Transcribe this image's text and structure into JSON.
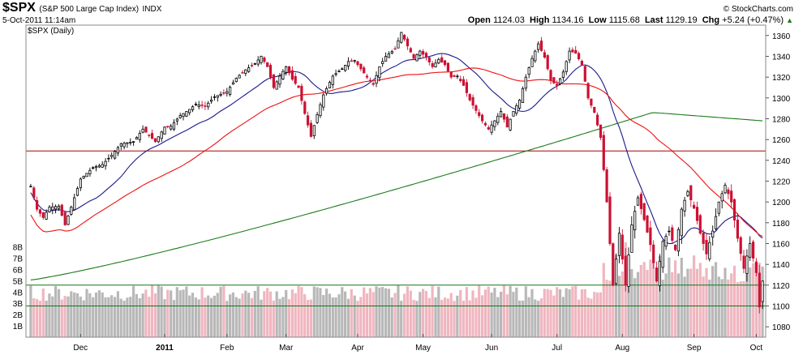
{
  "header": {
    "symbol": "$SPX",
    "name": "(S&P 500 Large Cap Index)",
    "exchange": "INDX",
    "datetime": "5-Oct-2011 11:14am",
    "brand": "© StockCharts.com",
    "open_label": "Open",
    "open": "1124.03",
    "high_label": "High",
    "high": "1134.16",
    "low_label": "Low",
    "low": "1115.68",
    "last_label": "Last",
    "last": "1129.19",
    "chg_label": "Chg",
    "chg": "+5.24 (+0.47%)",
    "chg_arrow": "▲",
    "plot_label": "$SPX (Daily)"
  },
  "colors": {
    "up": "#000000",
    "down": "#cc1133",
    "ma_short": "#1a1a8c",
    "ma_mid": "#ee1111",
    "ma_long": "#1a7a1a",
    "hline_red": "#aa0000",
    "hline_green": "#117711",
    "vol_up": "#b8b8b8",
    "vol_down": "#f0b6c0"
  },
  "chart_data": {
    "type": "candlestick",
    "ylim": [
      1070,
      1370
    ],
    "y_ticks": [
      1080,
      1100,
      1120,
      1140,
      1160,
      1180,
      1200,
      1220,
      1240,
      1260,
      1280,
      1300,
      1320,
      1340,
      1360
    ],
    "volume_ticks": [
      "1B",
      "2B",
      "3B",
      "4B",
      "5B",
      "6B",
      "7B",
      "8B"
    ],
    "volume_max_billion": 8.9,
    "x_labels": [
      {
        "label": "Dec",
        "index": 16,
        "bold": false
      },
      {
        "label": "2011",
        "index": 43,
        "bold": true
      },
      {
        "label": "Feb",
        "index": 63,
        "bold": false
      },
      {
        "label": "Mar",
        "index": 82,
        "bold": false
      },
      {
        "label": "Apr",
        "index": 105,
        "bold": false
      },
      {
        "label": "May",
        "index": 126,
        "bold": false
      },
      {
        "label": "Jun",
        "index": 148,
        "bold": false
      },
      {
        "label": "Jul",
        "index": 169,
        "bold": false
      },
      {
        "label": "Aug",
        "index": 190,
        "bold": false
      },
      {
        "label": "Sep",
        "index": 213,
        "bold": false
      },
      {
        "label": "Oct",
        "index": 233,
        "bold": false
      }
    ],
    "horizontal_lines": [
      {
        "value": 1249,
        "kind": "red"
      },
      {
        "value": 1120,
        "kind": "green"
      },
      {
        "value": 1100,
        "kind": "green"
      }
    ],
    "anchors": [
      [
        0,
        1215
      ],
      [
        2,
        1193
      ],
      [
        4,
        1185
      ],
      [
        6,
        1195
      ],
      [
        9,
        1196
      ],
      [
        11,
        1178
      ],
      [
        13,
        1195
      ],
      [
        16,
        1222
      ],
      [
        20,
        1233
      ],
      [
        23,
        1236
      ],
      [
        26,
        1245
      ],
      [
        29,
        1256
      ],
      [
        33,
        1258
      ],
      [
        36,
        1270
      ],
      [
        40,
        1258
      ],
      [
        43,
        1272
      ],
      [
        45,
        1273
      ],
      [
        48,
        1283
      ],
      [
        51,
        1289
      ],
      [
        53,
        1294
      ],
      [
        56,
        1292
      ],
      [
        59,
        1301
      ],
      [
        63,
        1306
      ],
      [
        66,
        1319
      ],
      [
        69,
        1327
      ],
      [
        72,
        1333
      ],
      [
        74,
        1340
      ],
      [
        76,
        1330
      ],
      [
        78,
        1310
      ],
      [
        80,
        1321
      ],
      [
        82,
        1330
      ],
      [
        84,
        1318
      ],
      [
        86,
        1310
      ],
      [
        88,
        1285
      ],
      [
        90,
        1263
      ],
      [
        92,
        1284
      ],
      [
        94,
        1303
      ],
      [
        97,
        1321
      ],
      [
        100,
        1328
      ],
      [
        102,
        1335
      ],
      [
        104,
        1336
      ],
      [
        106,
        1328
      ],
      [
        108,
        1320
      ],
      [
        110,
        1313
      ],
      [
        112,
        1330
      ],
      [
        114,
        1340
      ],
      [
        117,
        1347
      ],
      [
        119,
        1363
      ],
      [
        121,
        1350
      ],
      [
        123,
        1338
      ],
      [
        125,
        1345
      ],
      [
        127,
        1339
      ],
      [
        129,
        1330
      ],
      [
        131,
        1337
      ],
      [
        133,
        1332
      ],
      [
        135,
        1320
      ],
      [
        137,
        1321
      ],
      [
        139,
        1312
      ],
      [
        141,
        1298
      ],
      [
        143,
        1288
      ],
      [
        145,
        1278
      ],
      [
        147,
        1270
      ],
      [
        149,
        1278
      ],
      [
        151,
        1287
      ],
      [
        153,
        1272
      ],
      [
        155,
        1287
      ],
      [
        157,
        1298
      ],
      [
        159,
        1320
      ],
      [
        161,
        1338
      ],
      [
        163,
        1352
      ],
      [
        165,
        1339
      ],
      [
        167,
        1317
      ],
      [
        169,
        1312
      ],
      [
        171,
        1325
      ],
      [
        173,
        1345
      ],
      [
        175,
        1343
      ],
      [
        177,
        1332
      ],
      [
        179,
        1300
      ],
      [
        181,
        1286
      ],
      [
        183,
        1262
      ],
      [
        185,
        1200
      ],
      [
        187,
        1120
      ],
      [
        189,
        1170
      ],
      [
        191,
        1120
      ],
      [
        193,
        1178
      ],
      [
        195,
        1204
      ],
      [
        197,
        1183
      ],
      [
        199,
        1159
      ],
      [
        201,
        1124
      ],
      [
        203,
        1162
      ],
      [
        205,
        1172
      ],
      [
        207,
        1154
      ],
      [
        209,
        1193
      ],
      [
        211,
        1210
      ],
      [
        213,
        1194
      ],
      [
        215,
        1170
      ],
      [
        217,
        1150
      ],
      [
        219,
        1172
      ],
      [
        221,
        1200
      ],
      [
        223,
        1216
      ],
      [
        225,
        1200
      ],
      [
        227,
        1165
      ],
      [
        229,
        1136
      ],
      [
        231,
        1160
      ],
      [
        233,
        1132
      ],
      [
        234,
        1099
      ],
      [
        235,
        1124
      ]
    ],
    "moving_averages": [
      {
        "kind": "ma_short",
        "period": 20
      },
      {
        "kind": "ma_mid",
        "period": 50
      },
      {
        "kind": "ma_long",
        "period": 200,
        "start": [
          0,
          1125
        ],
        "end": [
          235,
          1278
        ]
      }
    ]
  }
}
